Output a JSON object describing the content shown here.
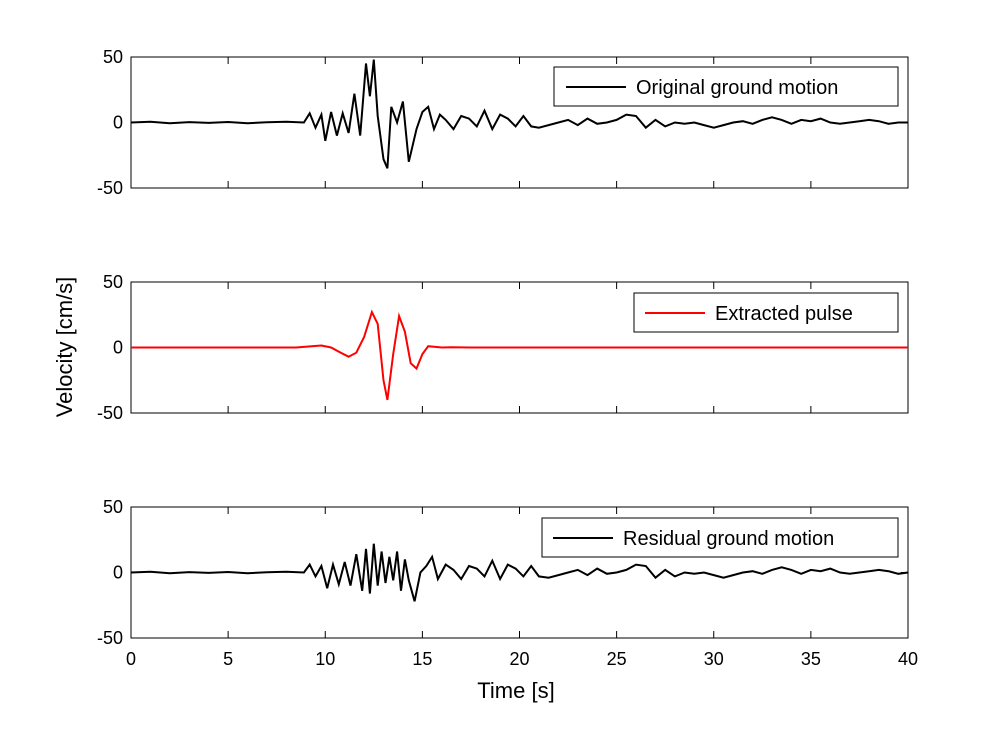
{
  "figure": {
    "xlabel": "Time [s]",
    "ylabel": "Velocity [cm/s]"
  },
  "chart_data": [
    {
      "type": "line",
      "legend": "Original ground motion",
      "color": "#000000",
      "xlabel": "",
      "ylabel": "",
      "xlim": [
        0,
        40
      ],
      "ylim": [
        -50,
        50
      ],
      "xticks": [
        0,
        5,
        10,
        15,
        20,
        25,
        30,
        35,
        40
      ],
      "yticks": [
        50,
        0,
        -50
      ],
      "legend_position": "top-right",
      "series": [
        {
          "name": "Original ground motion",
          "x": [
            0,
            1,
            2,
            3,
            4,
            5,
            6,
            7,
            8,
            8.9,
            9.2,
            9.5,
            9.8,
            10,
            10.3,
            10.6,
            10.9,
            11.2,
            11.5,
            11.8,
            12.1,
            12.3,
            12.5,
            12.7,
            13,
            13.2,
            13.4,
            13.7,
            14,
            14.3,
            14.7,
            15,
            15.3,
            15.6,
            15.9,
            16.2,
            16.6,
            17,
            17.4,
            17.8,
            18.2,
            18.6,
            19,
            19.4,
            19.8,
            20.2,
            20.6,
            21,
            21.5,
            22,
            22.5,
            23,
            23.5,
            24,
            24.5,
            25,
            25.5,
            26,
            26.5,
            27,
            27.5,
            28,
            28.5,
            29,
            29.5,
            30,
            30.5,
            31,
            31.5,
            32,
            32.5,
            33,
            33.5,
            34,
            34.5,
            35,
            35.5,
            36,
            36.5,
            37,
            37.5,
            38,
            38.5,
            39,
            39.5,
            40
          ],
          "y": [
            0,
            0.5,
            -0.5,
            0.3,
            -0.3,
            0.4,
            -0.5,
            0.2,
            0.5,
            0,
            7,
            -4,
            6,
            -14,
            8,
            -10,
            7,
            -8,
            22,
            -10,
            45,
            20,
            48,
            5,
            -28,
            -35,
            12,
            0,
            16,
            -30,
            -5,
            8,
            12,
            -5,
            6,
            2,
            -5,
            5,
            3,
            -3,
            9,
            -5,
            6,
            3,
            -3,
            5,
            -3,
            -4,
            -2,
            0,
            2,
            -2,
            3,
            -1,
            0,
            2,
            6,
            5,
            -4,
            2,
            -3,
            0,
            -1,
            0,
            -2,
            -4,
            -2,
            0,
            1,
            -1,
            2,
            4,
            2,
            -1,
            2,
            1,
            3,
            0,
            -1,
            0,
            1,
            2,
            1,
            -1,
            0,
            0
          ]
        }
      ]
    },
    {
      "type": "line",
      "legend": "Extracted pulse",
      "color": "#ff0000",
      "xlabel": "",
      "ylabel": "",
      "xlim": [
        0,
        40
      ],
      "ylim": [
        -50,
        50
      ],
      "xticks": [
        0,
        5,
        10,
        15,
        20,
        25,
        30,
        35,
        40
      ],
      "yticks": [
        50,
        0,
        -50
      ],
      "legend_position": "top-right",
      "series": [
        {
          "name": "Extracted pulse",
          "x": [
            0,
            8.5,
            9.3,
            9.8,
            10.3,
            10.8,
            11.2,
            11.6,
            12,
            12.4,
            12.7,
            13,
            13.2,
            13.5,
            13.8,
            14.1,
            14.4,
            14.7,
            15,
            15.3,
            15.6,
            16,
            16.5,
            17.5,
            40
          ],
          "y": [
            0,
            0,
            1,
            1.5,
            0,
            -4,
            -7,
            -4,
            8,
            27,
            18,
            -25,
            -40,
            -5,
            24,
            12,
            -12,
            -16,
            -5,
            1,
            0.5,
            0,
            0.2,
            0,
            0
          ]
        }
      ]
    },
    {
      "type": "line",
      "legend": "Residual ground motion",
      "color": "#000000",
      "xlabel": "",
      "ylabel": "",
      "xlim": [
        0,
        40
      ],
      "ylim": [
        -50,
        50
      ],
      "xticks": [
        0,
        5,
        10,
        15,
        20,
        25,
        30,
        35,
        40
      ],
      "yticks": [
        50,
        0,
        -50
      ],
      "legend_position": "top-right",
      "series": [
        {
          "name": "Residual ground motion",
          "x": [
            0,
            1,
            2,
            3,
            4,
            5,
            6,
            7,
            8,
            8.9,
            9.2,
            9.5,
            9.8,
            10.1,
            10.4,
            10.7,
            11,
            11.3,
            11.6,
            11.9,
            12.1,
            12.3,
            12.5,
            12.7,
            12.9,
            13.1,
            13.3,
            13.5,
            13.7,
            13.9,
            14.1,
            14.3,
            14.6,
            14.9,
            15.2,
            15.5,
            15.8,
            16.2,
            16.6,
            17,
            17.4,
            17.8,
            18.2,
            18.6,
            19,
            19.4,
            19.8,
            20.2,
            20.6,
            21,
            21.5,
            22,
            22.5,
            23,
            23.5,
            24,
            24.5,
            25,
            25.5,
            26,
            26.5,
            27,
            27.5,
            28,
            28.5,
            29,
            29.5,
            30,
            30.5,
            31,
            31.5,
            32,
            32.5,
            33,
            33.5,
            34,
            34.5,
            35,
            35.5,
            36,
            36.5,
            37,
            37.5,
            38,
            38.5,
            39,
            39.5,
            40
          ],
          "y": [
            0,
            0.5,
            -0.5,
            0.3,
            -0.3,
            0.4,
            -0.5,
            0.2,
            0.5,
            0,
            6,
            -3,
            5,
            -12,
            6,
            -9,
            8,
            -10,
            14,
            -14,
            18,
            -16,
            22,
            -10,
            16,
            -8,
            12,
            -6,
            16,
            -14,
            10,
            -6,
            -22,
            0,
            5,
            12,
            -5,
            6,
            2,
            -5,
            5,
            3,
            -3,
            9,
            -5,
            6,
            3,
            -3,
            5,
            -3,
            -4,
            -2,
            0,
            2,
            -2,
            3,
            -1,
            0,
            2,
            6,
            5,
            -4,
            2,
            -3,
            0,
            -1,
            0,
            -2,
            -4,
            -2,
            0,
            1,
            -1,
            2,
            4,
            2,
            -1,
            2,
            1,
            3,
            0,
            -1,
            0,
            1,
            2,
            1,
            -1,
            0
          ]
        }
      ]
    }
  ]
}
